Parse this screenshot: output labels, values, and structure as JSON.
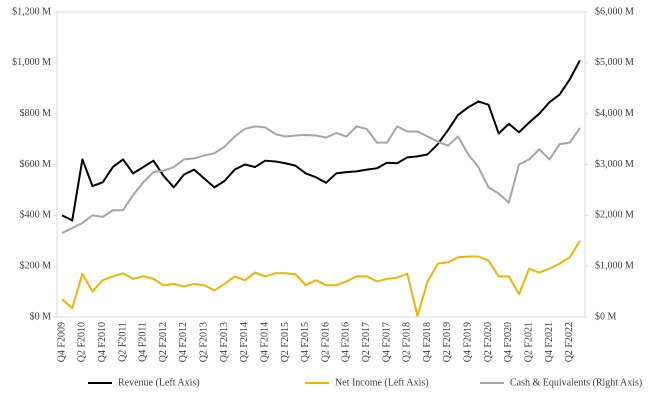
{
  "chart_data": {
    "type": "line",
    "categories": [
      "Q4 F2009",
      null,
      "Q2 F2010",
      null,
      "Q4 F2010",
      null,
      "Q2 F2011",
      null,
      "Q4 F2011",
      null,
      "Q2 F2012",
      null,
      "Q4 F2012",
      null,
      "Q2 F2013",
      null,
      "Q4 F2013",
      null,
      "Q2 F2014",
      null,
      "Q4 F2014",
      null,
      "Q2 F2015",
      null,
      "Q4 F2015",
      null,
      "Q2 F2016",
      null,
      "Q4 F2016",
      null,
      "Q2 F2017",
      null,
      "Q4 F2017",
      null,
      "Q2 F2018",
      null,
      "Q4 F2018",
      null,
      "Q2 F2019",
      null,
      "Q4 F2019",
      null,
      "Q2 F2020",
      null,
      "Q4 F2020",
      null,
      "Q2 F2021",
      null,
      "Q4 F2021",
      null,
      "Q2 F2022",
      null
    ],
    "series": [
      {
        "name": "Revenue (Left Axis)",
        "color": "#000000",
        "values": [
          400,
          380,
          620,
          515,
          530,
          590,
          620,
          565,
          590,
          615,
          555,
          510,
          560,
          580,
          545,
          510,
          535,
          580,
          600,
          590,
          615,
          612,
          605,
          595,
          565,
          550,
          528,
          565,
          570,
          573,
          580,
          585,
          607,
          605,
          628,
          632,
          640,
          680,
          735,
          795,
          825,
          848,
          835,
          722,
          760,
          727,
          765,
          800,
          845,
          875,
          935,
          1010
        ]
      },
      {
        "name": "Net Income (Left Axis)",
        "color": "#f0b400",
        "values": [
          70,
          35,
          170,
          100,
          145,
          160,
          172,
          150,
          160,
          150,
          125,
          130,
          120,
          130,
          125,
          105,
          130,
          160,
          145,
          175,
          160,
          172,
          172,
          168,
          125,
          145,
          125,
          125,
          140,
          160,
          160,
          140,
          150,
          155,
          170,
          5,
          140,
          210,
          215,
          235,
          238,
          238,
          222,
          160,
          160,
          90,
          190,
          175,
          190,
          210,
          235,
          300
        ]
      },
      {
        "name": "Cash & Equivalents (Right Axis)",
        "color": "#a6a6a6",
        "axis": "y2",
        "values": [
          1650,
          1750,
          1850,
          2000,
          1970,
          2100,
          2100,
          2400,
          2650,
          2850,
          2880,
          2950,
          3100,
          3120,
          3180,
          3220,
          3350,
          3550,
          3700,
          3750,
          3730,
          3600,
          3550,
          3570,
          3580,
          3570,
          3530,
          3620,
          3550,
          3750,
          3700,
          3430,
          3430,
          3750,
          3650,
          3650,
          3550,
          3450,
          3370,
          3550,
          3200,
          2950,
          2550,
          2430,
          2250,
          3000,
          3100,
          3300,
          3100,
          3400,
          3430,
          3720
        ]
      }
    ],
    "ylim": [
      0,
      1200
    ],
    "yticks": [
      {
        "value": 0,
        "label": "$0 M"
      },
      {
        "value": 200,
        "label": "$200 M"
      },
      {
        "value": 400,
        "label": "$400 M"
      },
      {
        "value": 600,
        "label": "$600 M"
      },
      {
        "value": 800,
        "label": "$800 M"
      },
      {
        "value": 1000,
        "label": "$1,000 M"
      },
      {
        "value": 1200,
        "label": "$1,200 M"
      }
    ],
    "y2lim": [
      0,
      6000
    ],
    "y2ticks": [
      {
        "value": 0,
        "label": "$0 M"
      },
      {
        "value": 1000,
        "label": "$1,000 M"
      },
      {
        "value": 2000,
        "label": "$2,000 M"
      },
      {
        "value": 3000,
        "label": "$3,000 M"
      },
      {
        "value": 4000,
        "label": "$4,000 M"
      },
      {
        "value": 5000,
        "label": "$5,000 M"
      },
      {
        "value": 6000,
        "label": "$6,000 M"
      }
    ],
    "legend": "bottom"
  }
}
